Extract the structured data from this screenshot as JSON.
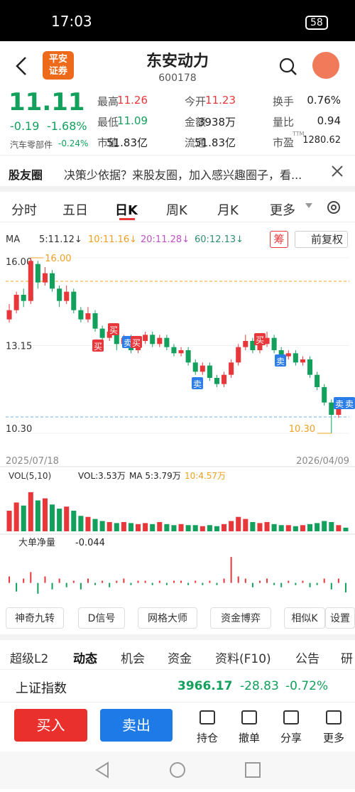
{
  "status": {
    "time": "17:03",
    "battery": "58"
  },
  "header": {
    "logo": [
      "平安",
      "证券"
    ],
    "name": "东安动力",
    "code": "600178"
  },
  "quote": {
    "price": "11.11",
    "change": "-0.19",
    "pct": "-1.68%",
    "sector": "汽车零部件",
    "sector_pct": "-0.24%",
    "stats": [
      [
        {
          "label": "最高",
          "value": "11.26"
        },
        {
          "label": "今开",
          "value": "11.23"
        },
        {
          "label": "换手",
          "value": "0.76%"
        }
      ],
      [
        {
          "label": "最低",
          "value": "11.09"
        },
        {
          "label": "金额",
          "value": "3938万"
        },
        {
          "label": "量比",
          "value": "0.94"
        }
      ],
      [
        {
          "label": "市值",
          "value": "51.83亿"
        },
        {
          "label": "流通",
          "value": "51.83亿"
        },
        {
          "label": "市盈",
          "value": "1280.62",
          "sup": "TTM"
        }
      ]
    ]
  },
  "notice": {
    "title": "股友圈",
    "text": "决策少依据？来股友圈，加入感兴趣圈子，看..."
  },
  "tabs": [
    "分时",
    "五日",
    "日K",
    "周K",
    "月K",
    "更多"
  ],
  "active_tab": 2,
  "indicators": {
    "ma_label": "MA",
    "ma": [
      {
        "text": "5:11.12↓",
        "color": "#333333"
      },
      {
        "text": "10:11.16↓",
        "color": "#f0a020"
      },
      {
        "text": "20:11.28↓",
        "color": "#c050c8"
      },
      {
        "text": "60:12.13↓",
        "color": "#2f8f6f"
      }
    ],
    "chip": "筹",
    "adjust": "前复权"
  },
  "chart_data": {
    "type": "candlestick",
    "up_color": "#e8373b",
    "down_color": "#12a05c",
    "candles": [
      [
        14.0,
        14.5,
        13.9,
        14.3
      ],
      [
        14.3,
        14.9,
        14.2,
        14.8
      ],
      [
        14.8,
        15.0,
        14.4,
        14.6
      ],
      [
        14.6,
        16.0,
        14.5,
        15.9
      ],
      [
        15.8,
        15.9,
        15.0,
        15.2
      ],
      [
        15.2,
        15.7,
        15.1,
        15.5
      ],
      [
        15.5,
        15.6,
        14.9,
        15.0
      ],
      [
        15.0,
        15.1,
        14.4,
        14.6
      ],
      [
        14.6,
        15.1,
        14.5,
        14.9
      ],
      [
        14.9,
        15.0,
        14.2,
        14.3
      ],
      [
        14.3,
        14.4,
        13.9,
        14.0
      ],
      [
        14.0,
        14.4,
        13.9,
        14.2
      ],
      [
        14.2,
        14.3,
        13.6,
        13.7
      ],
      [
        13.7,
        13.8,
        13.2,
        13.4
      ],
      [
        13.4,
        13.7,
        13.3,
        13.6
      ],
      [
        13.6,
        13.7,
        13.0,
        13.2
      ],
      [
        13.2,
        13.5,
        13.1,
        13.4
      ],
      [
        13.4,
        13.5,
        12.9,
        13.0
      ],
      [
        13.0,
        13.4,
        12.9,
        13.3
      ],
      [
        13.3,
        13.6,
        13.2,
        13.5
      ],
      [
        13.5,
        13.6,
        13.1,
        13.2
      ],
      [
        13.2,
        13.5,
        13.1,
        13.4
      ],
      [
        13.4,
        13.5,
        13.0,
        13.1
      ],
      [
        13.1,
        13.2,
        12.8,
        12.9
      ],
      [
        12.9,
        13.1,
        12.8,
        13.0
      ],
      [
        13.0,
        13.1,
        12.5,
        12.6
      ],
      [
        12.6,
        12.7,
        12.2,
        12.3
      ],
      [
        12.3,
        12.6,
        12.2,
        12.5
      ],
      [
        12.5,
        12.6,
        12.0,
        12.1
      ],
      [
        12.1,
        12.2,
        11.8,
        11.9
      ],
      [
        11.9,
        12.3,
        11.8,
        12.2
      ],
      [
        12.2,
        12.7,
        12.1,
        12.6
      ],
      [
        12.6,
        13.2,
        12.5,
        13.1
      ],
      [
        13.1,
        13.5,
        13.0,
        13.3
      ],
      [
        13.3,
        13.4,
        12.9,
        13.0
      ],
      [
        13.0,
        13.3,
        12.9,
        13.2
      ],
      [
        13.2,
        13.6,
        13.1,
        13.4
      ],
      [
        13.4,
        13.5,
        12.9,
        13.0
      ],
      [
        13.0,
        13.1,
        12.7,
        12.8
      ],
      [
        12.8,
        13.0,
        12.7,
        12.9
      ],
      [
        12.9,
        13.0,
        12.5,
        12.6
      ],
      [
        12.6,
        12.8,
        12.5,
        12.7
      ],
      [
        12.7,
        12.8,
        12.1,
        12.2
      ],
      [
        12.2,
        12.3,
        11.7,
        11.8
      ],
      [
        11.8,
        11.9,
        11.2,
        11.3
      ],
      [
        11.3,
        11.4,
        10.3,
        10.9
      ],
      [
        10.9,
        11.4,
        10.8,
        11.3
      ],
      [
        11.23,
        11.26,
        11.09,
        11.11
      ]
    ],
    "ylim": [
      10.3,
      16.0
    ],
    "yticks": [
      {
        "value": 16.0,
        "label": "16.00"
      },
      {
        "value": 13.15,
        "label": "13.15"
      },
      {
        "value": 10.3,
        "label": "10.30"
      }
    ],
    "high_mark": {
      "value": 16.0,
      "label": "16.00"
    },
    "low_mark": {
      "value": 10.3,
      "label": "10.30"
    },
    "x_start": "2025/07/18",
    "x_end": "2026/04/09",
    "signals": [
      "买",
      "买",
      "卖",
      "买",
      "卖",
      "买",
      "卖",
      "卖",
      "卖"
    ]
  },
  "volume": {
    "title": "VOL(5,10)",
    "readings": [
      "VOL:3.53万",
      "MA 5:3.79万",
      "10:4.57万"
    ],
    "ylim": [
      0,
      40
    ],
    "values": [
      20,
      28,
      25,
      38,
      30,
      32,
      26,
      22,
      24,
      20,
      15,
      14,
      12,
      10,
      9,
      8,
      9,
      8,
      7,
      8,
      7,
      9,
      7,
      6,
      7,
      6,
      6,
      5,
      6,
      5,
      7,
      10,
      14,
      12,
      9,
      8,
      9,
      7,
      6,
      6,
      5,
      6,
      7,
      8,
      10,
      9,
      6,
      3.53
    ]
  },
  "net": {
    "title": "大单净量",
    "reading": "-0.044",
    "ylim": [
      -0.08,
      0.14
    ],
    "values": [
      0.03,
      -0.04,
      0.02,
      0.05,
      -0.05,
      0.03,
      -0.03,
      0.02,
      -0.02,
      0.01,
      -0.03,
      0.02,
      -0.01,
      0.01,
      -0.02,
      0.01,
      0.02,
      -0.01,
      0.01,
      0.01,
      -0.01,
      0.01,
      -0.01,
      0.01,
      0.01,
      -0.01,
      0.01,
      -0.01,
      0.01,
      -0.01,
      0.02,
      0.12,
      0.03,
      0.02,
      -0.02,
      0.01,
      0.02,
      -0.01,
      -0.02,
      0.01,
      -0.01,
      0.01,
      -0.02,
      -0.01,
      0.02,
      -0.03,
      0.02,
      -0.044
    ]
  },
  "tools": [
    "神奇九转",
    "D信号",
    "网格大师",
    "资金博弈",
    "相似K",
    "设置"
  ],
  "sections": [
    "超级L2",
    "动态",
    "机会",
    "资金",
    "资料(F10)",
    "公告",
    "研"
  ],
  "index": {
    "name": "上证指数",
    "value": "3966.17",
    "change": "-28.83",
    "pct": "-0.72%"
  },
  "actions": {
    "buy": "买入",
    "sell": "卖出",
    "items": [
      "持仓",
      "撤单",
      "分享",
      "更多"
    ]
  }
}
